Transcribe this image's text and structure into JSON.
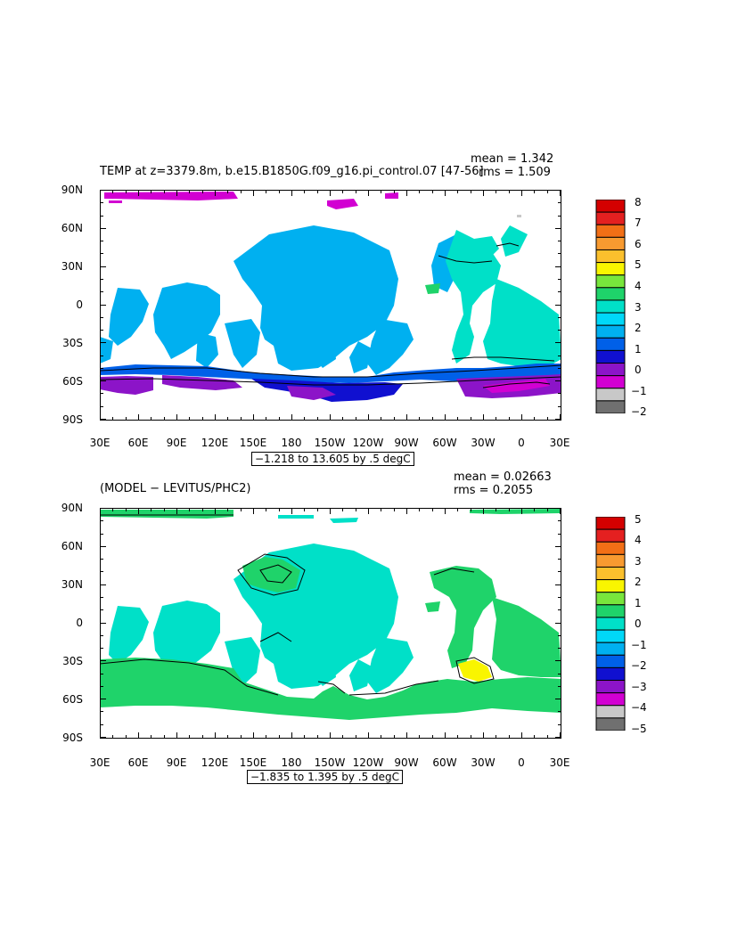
{
  "panel1": {
    "title": "TEMP at z=3379.8m, b.e15.B1850G.f09_g16.pi_control.07 [47-56]",
    "mean_text": "mean = 1.342",
    "rms_text": "rms = 1.509",
    "contour_info": "−1.218 to 13.605 by .5 degC",
    "lat_ticks": [
      "90N",
      "60N",
      "30N",
      "0",
      "30S",
      "60S",
      "90S"
    ],
    "lon_ticks": [
      "30E",
      "60E",
      "90E",
      "120E",
      "150E",
      "180",
      "150W",
      "120W",
      "90W",
      "60W",
      "30W",
      "0",
      "30E"
    ],
    "colorbar_labels": [
      "8",
      "7",
      "6",
      "5",
      "4",
      "3",
      "2",
      "1",
      "0",
      "−1",
      "−2"
    ],
    "colorbar_colors": [
      "#d40000",
      "#e42020",
      "#f26f16",
      "#f89a30",
      "#fbc02d",
      "#f9f500",
      "#78e63c",
      "#1fd36a",
      "#00e0c8",
      "#00d8f8",
      "#00b0f0",
      "#0060e8",
      "#1010d0",
      "#8c14c8",
      "#d200d2",
      "#c8c8c8",
      "#707070"
    ]
  },
  "panel2": {
    "title": "(MODEL − LEVITUS/PHC2)",
    "mean_text": "mean = 0.02663",
    "rms_text": "rms = 0.2055",
    "contour_info": "−1.835 to 1.395 by .5 degC",
    "lat_ticks": [
      "90N",
      "60N",
      "30N",
      "0",
      "30S",
      "60S",
      "90S"
    ],
    "lon_ticks": [
      "30E",
      "60E",
      "90E",
      "120E",
      "150E",
      "180",
      "150W",
      "120W",
      "90W",
      "60W",
      "30W",
      "0",
      "30E"
    ],
    "colorbar_labels": [
      "5",
      "4",
      "3",
      "2",
      "1",
      "0",
      "−1",
      "−2",
      "−3",
      "−4",
      "−5"
    ],
    "colorbar_colors": [
      "#d40000",
      "#e42020",
      "#f26f16",
      "#f89a30",
      "#fbc02d",
      "#f9f500",
      "#78e63c",
      "#1fd36a",
      "#00e0c8",
      "#00d8f8",
      "#00b0f0",
      "#0060e8",
      "#1010d0",
      "#8c14c8",
      "#d200d2",
      "#c8c8c8",
      "#707070"
    ]
  }
}
